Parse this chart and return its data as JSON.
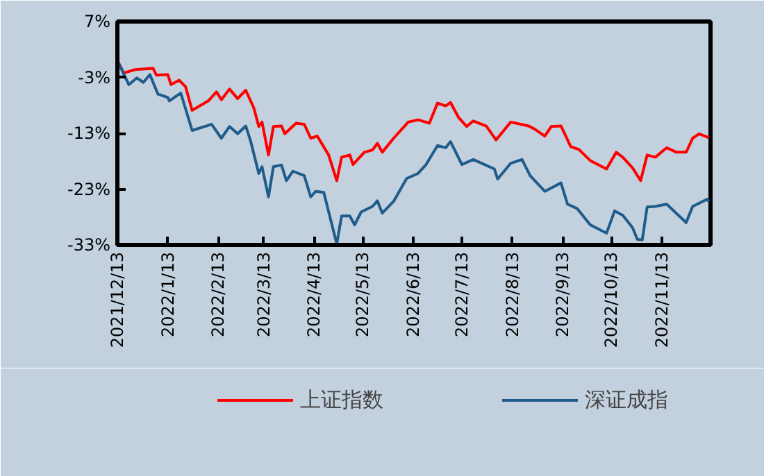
{
  "chart_data": {
    "type": "line",
    "xlim": [
      "2021-12-13",
      "2022-12-13"
    ],
    "xticks": [
      {
        "value": "2021-12-13",
        "label": "2021/12/13"
      },
      {
        "value": "2022-01-13",
        "label": "2022/1/13"
      },
      {
        "value": "2022-02-13",
        "label": "2022/2/13"
      },
      {
        "value": "2022-03-13",
        "label": "2022/3/13"
      },
      {
        "value": "2022-04-13",
        "label": "2022/4/13"
      },
      {
        "value": "2022-05-13",
        "label": "2022/5/13"
      },
      {
        "value": "2022-06-13",
        "label": "2022/6/13"
      },
      {
        "value": "2022-07-13",
        "label": "2022/7/13"
      },
      {
        "value": "2022-08-13",
        "label": "2022/8/13"
      },
      {
        "value": "2022-09-13",
        "label": "2022/9/13"
      },
      {
        "value": "2022-10-13",
        "label": "2022/10/13"
      },
      {
        "value": "2022-11-13",
        "label": "2022/11/13"
      }
    ],
    "ylim": [
      -33,
      7
    ],
    "yticks": [
      {
        "value": 7,
        "label": "7%"
      },
      {
        "value": -3,
        "label": "-3%"
      },
      {
        "value": -13,
        "label": "-13%"
      },
      {
        "value": -23,
        "label": "-23%"
      },
      {
        "value": -33,
        "label": "-33%"
      }
    ],
    "grid": false,
    "legend": "bottom",
    "marker": "none",
    "line_style": "solid",
    "series": [
      {
        "name": "上证指数",
        "color": "#ff0000",
        "x": [
          "2021-12-13",
          "2021-12-17",
          "2021-12-24",
          "2022-01-04",
          "2022-01-06",
          "2022-01-13",
          "2022-01-15",
          "2022-01-20",
          "2022-01-24",
          "2022-01-28",
          "2022-02-07",
          "2022-02-12",
          "2022-02-15",
          "2022-02-20",
          "2022-02-25",
          "2022-03-02",
          "2022-03-07",
          "2022-03-10",
          "2022-03-12",
          "2022-03-16",
          "2022-03-19",
          "2022-03-24",
          "2022-03-26",
          "2022-04-02",
          "2022-04-07",
          "2022-04-11",
          "2022-04-15",
          "2022-04-22",
          "2022-04-27",
          "2022-04-30",
          "2022-05-05",
          "2022-05-07",
          "2022-05-14",
          "2022-05-19",
          "2022-05-22",
          "2022-05-25",
          "2022-06-01",
          "2022-06-10",
          "2022-06-16",
          "2022-06-23",
          "2022-06-28",
          "2022-07-03",
          "2022-07-06",
          "2022-07-11",
          "2022-07-16",
          "2022-07-20",
          "2022-07-28",
          "2022-08-03",
          "2022-08-12",
          "2022-08-23",
          "2022-08-27",
          "2022-09-02",
          "2022-09-06",
          "2022-09-12",
          "2022-09-18",
          "2022-09-23",
          "2022-09-30",
          "2022-10-10",
          "2022-10-16",
          "2022-10-20",
          "2022-10-26",
          "2022-10-31",
          "2022-11-04",
          "2022-11-09",
          "2022-11-16",
          "2022-11-22",
          "2022-11-28",
          "2022-12-02",
          "2022-12-06",
          "2022-12-12"
        ],
        "values": [
          0,
          -2.2,
          -1.6,
          -1.4,
          -2.6,
          -2.5,
          -4.3,
          -3.5,
          -4.7,
          -8.9,
          -7.2,
          -5.6,
          -7.0,
          -5.1,
          -6.8,
          -5.3,
          -8.5,
          -11.8,
          -11.0,
          -16.9,
          -11.8,
          -11.7,
          -13.1,
          -11.2,
          -11.4,
          -13.9,
          -13.5,
          -16.9,
          -21.5,
          -17.3,
          -16.9,
          -18.6,
          -16.4,
          -16.0,
          -14.8,
          -16.4,
          -13.9,
          -11.0,
          -10.6,
          -11.2,
          -7.6,
          -8.1,
          -7.5,
          -10.2,
          -11.8,
          -10.8,
          -11.7,
          -14.2,
          -11.0,
          -11.7,
          -12.3,
          -13.5,
          -11.8,
          -11.7,
          -15.4,
          -15.9,
          -17.9,
          -19.4,
          -16.4,
          -17.3,
          -19.2,
          -21.5,
          -16.9,
          -17.3,
          -15.6,
          -16.4,
          -16.4,
          -13.9,
          -13.1,
          -13.8
        ]
      },
      {
        "name": "深证成指",
        "color": "#1f5c8b",
        "x": [
          "2021-12-13",
          "2021-12-20",
          "2021-12-25",
          "2021-12-29",
          "2022-01-02",
          "2022-01-07",
          "2022-01-13",
          "2022-01-14",
          "2022-01-21",
          "2022-01-28",
          "2022-02-09",
          "2022-02-15",
          "2022-02-20",
          "2022-02-25",
          "2022-03-02",
          "2022-03-05",
          "2022-03-10",
          "2022-03-12",
          "2022-03-16",
          "2022-03-19",
          "2022-03-24",
          "2022-03-27",
          "2022-03-31",
          "2022-04-07",
          "2022-04-11",
          "2022-04-14",
          "2022-04-19",
          "2022-04-27",
          "2022-04-30",
          "2022-05-05",
          "2022-05-08",
          "2022-05-12",
          "2022-05-19",
          "2022-05-22",
          "2022-05-25",
          "2022-06-01",
          "2022-06-09",
          "2022-06-16",
          "2022-06-21",
          "2022-06-28",
          "2022-07-03",
          "2022-07-06",
          "2022-07-13",
          "2022-07-20",
          "2022-08-02",
          "2022-08-04",
          "2022-08-12",
          "2022-08-19",
          "2022-08-24",
          "2022-09-02",
          "2022-09-12",
          "2022-09-16",
          "2022-09-22",
          "2022-09-30",
          "2022-10-10",
          "2022-10-15",
          "2022-10-20",
          "2022-10-26",
          "2022-10-29",
          "2022-11-01",
          "2022-11-04",
          "2022-11-09",
          "2022-11-16",
          "2022-11-28",
          "2022-12-02",
          "2022-12-11",
          "2022-12-12"
        ],
        "values": [
          0,
          -4.3,
          -3.1,
          -3.9,
          -2.5,
          -6.0,
          -6.6,
          -7.2,
          -5.8,
          -12.5,
          -11.4,
          -13.9,
          -11.8,
          -13.1,
          -11.7,
          -14.4,
          -20.2,
          -19.0,
          -24.4,
          -19.0,
          -18.7,
          -21.5,
          -19.8,
          -20.6,
          -24.4,
          -23.4,
          -23.6,
          -32.8,
          -27.8,
          -27.8,
          -29.4,
          -27.1,
          -26.1,
          -25.1,
          -27.3,
          -25.2,
          -21.1,
          -20.2,
          -18.6,
          -15.2,
          -15.6,
          -14.5,
          -18.6,
          -17.7,
          -19.4,
          -21.2,
          -18.4,
          -17.7,
          -20.6,
          -23.4,
          -21.9,
          -25.7,
          -26.5,
          -29.4,
          -30.9,
          -26.9,
          -27.7,
          -29.9,
          -32.0,
          -32.1,
          -26.2,
          -26.1,
          -25.7,
          -29.0,
          -26.1,
          -24.8,
          -25.2
        ]
      }
    ]
  }
}
